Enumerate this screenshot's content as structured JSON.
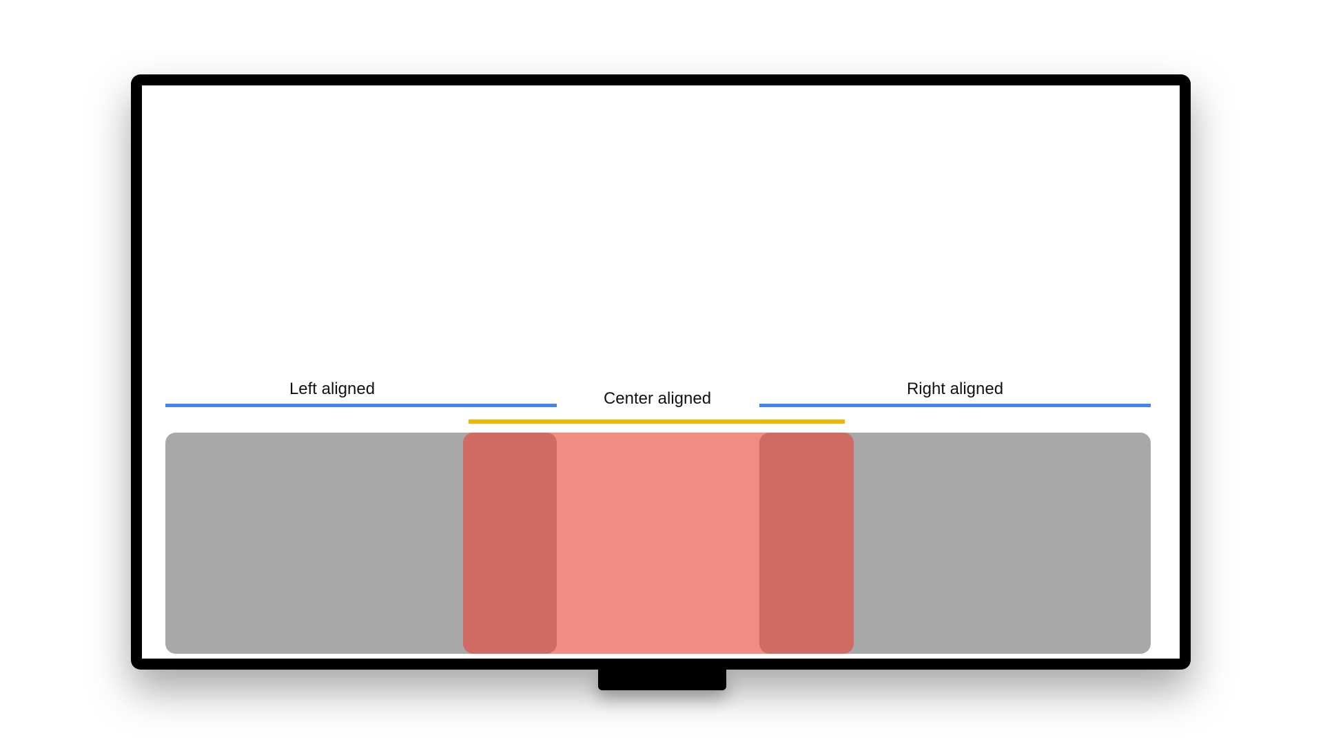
{
  "labels": {
    "left": "Left aligned",
    "center": "Center aligned",
    "right": "Right aligned"
  },
  "colors": {
    "alignment_line": "#4285f4",
    "center_line": "#f4b400",
    "row_background": "#a7a8aa",
    "focus_area": "#f28b82",
    "focus_edge": "#cf6b63",
    "tv_frame": "#000000"
  }
}
